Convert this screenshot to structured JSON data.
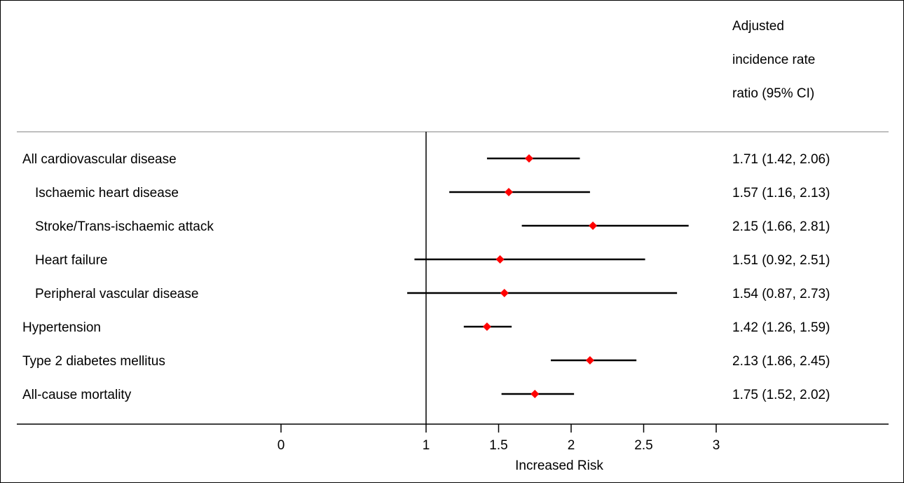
{
  "chart_data": {
    "type": "forest",
    "column_header": [
      "Adjusted",
      "incidence rate",
      "ratio (95% CI)"
    ],
    "xlabel": "Increased Risk",
    "xlim": [
      0,
      3
    ],
    "xticks": [
      0,
      1,
      1.5,
      2,
      2.5,
      3
    ],
    "xtick_labels": [
      "0",
      "1",
      "1.5",
      "2",
      "2.5",
      "3"
    ],
    "reference_line": 1,
    "rows": [
      {
        "label": "All cardiovascular disease",
        "indent": 0,
        "estimate": 1.71,
        "lower": 1.42,
        "upper": 2.06,
        "text": "1.71 (1.42, 2.06)"
      },
      {
        "label": "Ischaemic heart disease",
        "indent": 1,
        "estimate": 1.57,
        "lower": 1.16,
        "upper": 2.13,
        "text": "1.57 (1.16, 2.13)"
      },
      {
        "label": "Stroke/Trans-ischaemic attack",
        "indent": 1,
        "estimate": 2.15,
        "lower": 1.66,
        "upper": 2.81,
        "text": "2.15 (1.66, 2.81)"
      },
      {
        "label": "Heart failure",
        "indent": 1,
        "estimate": 1.51,
        "lower": 0.92,
        "upper": 2.51,
        "text": "1.51 (0.92, 2.51)"
      },
      {
        "label": "Peripheral vascular disease",
        "indent": 1,
        "estimate": 1.54,
        "lower": 0.87,
        "upper": 2.73,
        "text": "1.54 (0.87, 2.73)"
      },
      {
        "label": "Hypertension",
        "indent": 0,
        "estimate": 1.42,
        "lower": 1.26,
        "upper": 1.59,
        "text": "1.42 (1.26, 1.59)"
      },
      {
        "label": "Type 2 diabetes mellitus",
        "indent": 0,
        "estimate": 2.13,
        "lower": 1.86,
        "upper": 2.45,
        "text": "2.13 (1.86, 2.45)"
      },
      {
        "label": "All-cause mortality",
        "indent": 0,
        "estimate": 1.75,
        "lower": 1.52,
        "upper": 2.02,
        "text": "1.75 (1.52, 2.02)"
      }
    ],
    "colors": {
      "marker": "#ff0000",
      "line": "#000000",
      "separator": "#aaaaaa"
    }
  }
}
